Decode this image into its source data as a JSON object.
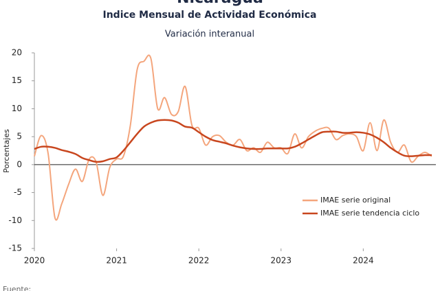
{
  "chart_data": {
    "type": "line",
    "title": "Nicaragua",
    "subtitle": "Indice Mensual de  Actividad Económica",
    "subtitle2": "Variación interanual",
    "y_label": "Porcentajes",
    "footer": "Fuente:",
    "x": [
      2020,
      2020.083,
      2020.167,
      2020.25,
      2020.333,
      2020.417,
      2020.5,
      2020.583,
      2020.667,
      2020.75,
      2020.833,
      2020.917,
      2021,
      2021.083,
      2021.167,
      2021.25,
      2021.333,
      2021.417,
      2021.5,
      2021.583,
      2021.667,
      2021.75,
      2021.833,
      2021.917,
      2022,
      2022.083,
      2022.167,
      2022.25,
      2022.333,
      2022.417,
      2022.5,
      2022.583,
      2022.667,
      2022.75,
      2022.833,
      2022.917,
      2023,
      2023.083,
      2023.167,
      2023.25,
      2023.333,
      2023.417,
      2023.5,
      2023.583,
      2023.667,
      2023.75,
      2023.833,
      2023.917,
      2024,
      2024.083,
      2024.167,
      2024.25,
      2024.333,
      2024.417,
      2024.5,
      2024.583,
      2024.667,
      2024.75,
      2024.833
    ],
    "series": [
      {
        "name": "IMAE serie original",
        "color": "#f4a57c",
        "values": [
          1.5,
          5.2,
          2,
          -9.5,
          -7,
          -3.5,
          -0.8,
          -3,
          1,
          0.5,
          -5.5,
          -0.5,
          1,
          1.5,
          7,
          17,
          18.5,
          19,
          10,
          12,
          9,
          9.5,
          14,
          7,
          6.5,
          3.5,
          5,
          5.2,
          4,
          3.5,
          4.5,
          2.5,
          3,
          2.2,
          4,
          3,
          3,
          2,
          5.5,
          3,
          5,
          6,
          6.5,
          6.5,
          4.5,
          5.2,
          5.5,
          5,
          2.5,
          7.5,
          2.5,
          8,
          4,
          2.2,
          3.5,
          0.5,
          1.5,
          2.2,
          1.5
        ]
      },
      {
        "name": "IMAE serie  tendencia ciclo",
        "color": "#c8461e",
        "values": [
          2.8,
          3.2,
          3.2,
          3,
          2.6,
          2.3,
          1.9,
          1.2,
          0.8,
          0.5,
          0.6,
          1,
          1.3,
          2.5,
          4,
          5.5,
          6.8,
          7.5,
          7.9,
          8,
          7.9,
          7.5,
          6.8,
          6.6,
          5.8,
          5,
          4.4,
          4.1,
          3.8,
          3.4,
          3.1,
          2.9,
          2.8,
          2.8,
          2.9,
          2.9,
          2.9,
          2.9,
          3.2,
          3.8,
          4.5,
          5.2,
          5.8,
          5.9,
          5.9,
          5.7,
          5.7,
          5.8,
          5.7,
          5.4,
          4.8,
          4,
          3,
          2.2,
          1.6,
          1.5,
          1.6,
          1.7,
          1.7
        ]
      }
    ],
    "xlim": [
      2020,
      2024.833
    ],
    "xticks": [
      2020,
      2021,
      2022,
      2023,
      2024
    ],
    "ylim": [
      -15,
      20
    ],
    "yticks": [
      20,
      15,
      10,
      5,
      0,
      -5,
      -10,
      -15
    ],
    "legend": "lower right"
  }
}
